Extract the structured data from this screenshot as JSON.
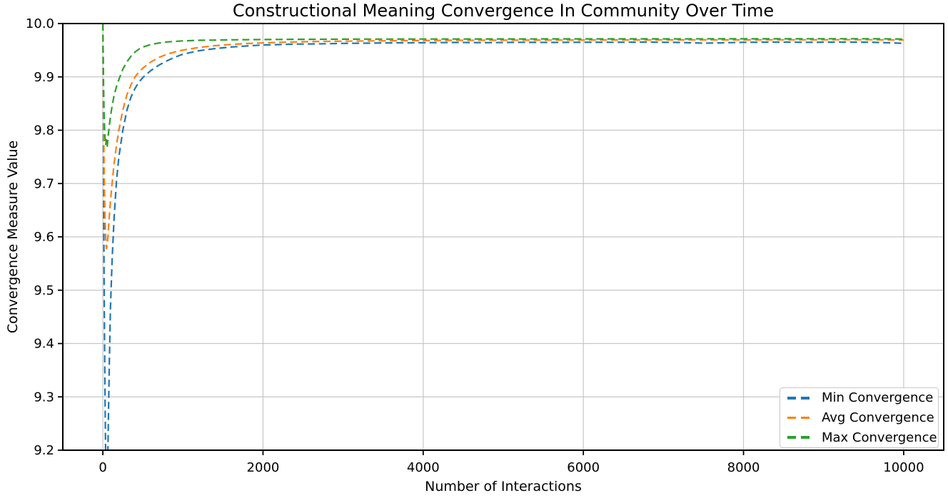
{
  "figure": {
    "background": "#ffffff",
    "grid_color": "#c6c6c6",
    "spine_color": "#000000",
    "text_color": "#000000"
  },
  "chart_data": {
    "type": "line",
    "title": "Constructional Meaning Convergence In Community Over Time",
    "xlabel": "Number of Interactions",
    "ylabel": "Convergence Measure Value",
    "grid": true,
    "legend_position": "lower right",
    "line_style": "dashed",
    "axes": {
      "xlim": [
        -500,
        10500
      ],
      "ylim": [
        9.2,
        10.0
      ],
      "x_ticks": [
        0,
        2000,
        4000,
        6000,
        8000,
        10000
      ],
      "x_tick_labels": [
        "0",
        "2000",
        "4000",
        "6000",
        "8000",
        "10000"
      ],
      "y_ticks": [
        9.2,
        9.3,
        9.4,
        9.5,
        9.6,
        9.7,
        9.8,
        9.9,
        10.0
      ],
      "y_tick_labels": [
        "9.2",
        "9.3",
        "9.4",
        "9.5",
        "9.6",
        "9.7",
        "9.8",
        "9.9",
        "10.0"
      ]
    },
    "series": [
      {
        "name": "Min Convergence",
        "color": "#1f77b4",
        "linestyle": "dashed",
        "points": [
          [
            0,
            10.0
          ],
          [
            8,
            9.72
          ],
          [
            16,
            9.5
          ],
          [
            25,
            9.33
          ],
          [
            35,
            9.19
          ],
          [
            45,
            9.11
          ],
          [
            55,
            9.13
          ],
          [
            65,
            9.22
          ],
          [
            80,
            9.36
          ],
          [
            95,
            9.465
          ],
          [
            115,
            9.555
          ],
          [
            140,
            9.635
          ],
          [
            170,
            9.705
          ],
          [
            200,
            9.75
          ],
          [
            250,
            9.8
          ],
          [
            300,
            9.837
          ],
          [
            350,
            9.862
          ],
          [
            400,
            9.878
          ],
          [
            450,
            9.89
          ],
          [
            500,
            9.899
          ],
          [
            600,
            9.912
          ],
          [
            700,
            9.922
          ],
          [
            800,
            9.93
          ],
          [
            900,
            9.937
          ],
          [
            1000,
            9.9425
          ],
          [
            1200,
            9.949
          ],
          [
            1400,
            9.953
          ],
          [
            1600,
            9.956
          ],
          [
            1800,
            9.958
          ],
          [
            2000,
            9.9598
          ],
          [
            2200,
            9.9605
          ],
          [
            2400,
            9.9615
          ],
          [
            2600,
            9.9618
          ],
          [
            2800,
            9.9622
          ],
          [
            3000,
            9.9628
          ],
          [
            3300,
            9.9632
          ],
          [
            3600,
            9.9638
          ],
          [
            4000,
            9.964
          ],
          [
            4400,
            9.9645
          ],
          [
            4800,
            9.9642
          ],
          [
            5200,
            9.9648
          ],
          [
            5600,
            9.9645
          ],
          [
            6000,
            9.965
          ],
          [
            6400,
            9.9648
          ],
          [
            6800,
            9.9652
          ],
          [
            7200,
            9.9645
          ],
          [
            7500,
            9.9632
          ],
          [
            7700,
            9.9638
          ],
          [
            8000,
            9.9648
          ],
          [
            8400,
            9.9652
          ],
          [
            8800,
            9.9648
          ],
          [
            9200,
            9.9652
          ],
          [
            9600,
            9.965
          ],
          [
            10000,
            9.963
          ]
        ]
      },
      {
        "name": "Avg Convergence",
        "color": "#ff7f0e",
        "linestyle": "dashed",
        "points": [
          [
            0,
            10.0
          ],
          [
            8,
            9.84
          ],
          [
            16,
            9.72
          ],
          [
            25,
            9.645
          ],
          [
            35,
            9.6
          ],
          [
            45,
            9.578
          ],
          [
            55,
            9.585
          ],
          [
            65,
            9.605
          ],
          [
            80,
            9.638
          ],
          [
            95,
            9.666
          ],
          [
            115,
            9.7
          ],
          [
            140,
            9.737
          ],
          [
            170,
            9.772
          ],
          [
            200,
            9.8
          ],
          [
            250,
            9.838
          ],
          [
            300,
            9.866
          ],
          [
            350,
            9.885
          ],
          [
            400,
            9.8995
          ],
          [
            450,
            9.909
          ],
          [
            500,
            9.9165
          ],
          [
            600,
            9.928
          ],
          [
            700,
            9.9365
          ],
          [
            800,
            9.9425
          ],
          [
            900,
            9.9468
          ],
          [
            1000,
            9.9502
          ],
          [
            1200,
            9.9552
          ],
          [
            1400,
            9.9585
          ],
          [
            1600,
            9.9608
          ],
          [
            1800,
            9.9625
          ],
          [
            2000,
            9.9638
          ],
          [
            2200,
            9.9648
          ],
          [
            2400,
            9.9655
          ],
          [
            2600,
            9.9662
          ],
          [
            2800,
            9.9666
          ],
          [
            3000,
            9.967
          ],
          [
            3300,
            9.9674
          ],
          [
            3600,
            9.9678
          ],
          [
            4000,
            9.9682
          ],
          [
            4400,
            9.9685
          ],
          [
            4800,
            9.9687
          ],
          [
            5200,
            9.9688
          ],
          [
            5600,
            9.969
          ],
          [
            6000,
            9.9691
          ],
          [
            6400,
            9.9692
          ],
          [
            6800,
            9.9692
          ],
          [
            7200,
            9.9693
          ],
          [
            7600,
            9.9694
          ],
          [
            8000,
            9.9694
          ],
          [
            8400,
            9.9695
          ],
          [
            8800,
            9.9695
          ],
          [
            9200,
            9.9696
          ],
          [
            9600,
            9.9696
          ],
          [
            10000,
            9.969
          ]
        ]
      },
      {
        "name": "Max Convergence",
        "color": "#2ca02c",
        "linestyle": "dashed",
        "points": [
          [
            0,
            10.0
          ],
          [
            8,
            9.89
          ],
          [
            16,
            9.825
          ],
          [
            25,
            9.79
          ],
          [
            35,
            9.772
          ],
          [
            45,
            9.782
          ],
          [
            55,
            9.77
          ],
          [
            65,
            9.788
          ],
          [
            80,
            9.808
          ],
          [
            95,
            9.825
          ],
          [
            115,
            9.845
          ],
          [
            140,
            9.865
          ],
          [
            170,
            9.882
          ],
          [
            200,
            9.895
          ],
          [
            250,
            9.9145
          ],
          [
            300,
            9.928
          ],
          [
            350,
            9.9385
          ],
          [
            400,
            9.9465
          ],
          [
            450,
            9.952
          ],
          [
            500,
            9.956
          ],
          [
            600,
            9.9608
          ],
          [
            700,
            9.9635
          ],
          [
            800,
            9.9655
          ],
          [
            900,
            9.9665
          ],
          [
            1000,
            9.9675
          ],
          [
            1200,
            9.9685
          ],
          [
            1400,
            9.969
          ],
          [
            1600,
            9.9695
          ],
          [
            1800,
            9.9698
          ],
          [
            2000,
            9.97
          ],
          [
            2200,
            9.9702
          ],
          [
            2400,
            9.9704
          ],
          [
            2600,
            9.9705
          ],
          [
            2800,
            9.9706
          ],
          [
            3000,
            9.9707
          ],
          [
            3300,
            9.9708
          ],
          [
            3600,
            9.9709
          ],
          [
            4000,
            9.971
          ],
          [
            4400,
            9.971
          ],
          [
            4800,
            9.9711
          ],
          [
            5200,
            9.9711
          ],
          [
            5600,
            9.9712
          ],
          [
            6000,
            9.9712
          ],
          [
            6400,
            9.9713
          ],
          [
            6800,
            9.9713
          ],
          [
            7200,
            9.9713
          ],
          [
            7600,
            9.9714
          ],
          [
            8000,
            9.9714
          ],
          [
            8400,
            9.9714
          ],
          [
            8800,
            9.9715
          ],
          [
            9200,
            9.9715
          ],
          [
            9600,
            9.9715
          ],
          [
            10000,
            9.971
          ]
        ]
      }
    ]
  }
}
